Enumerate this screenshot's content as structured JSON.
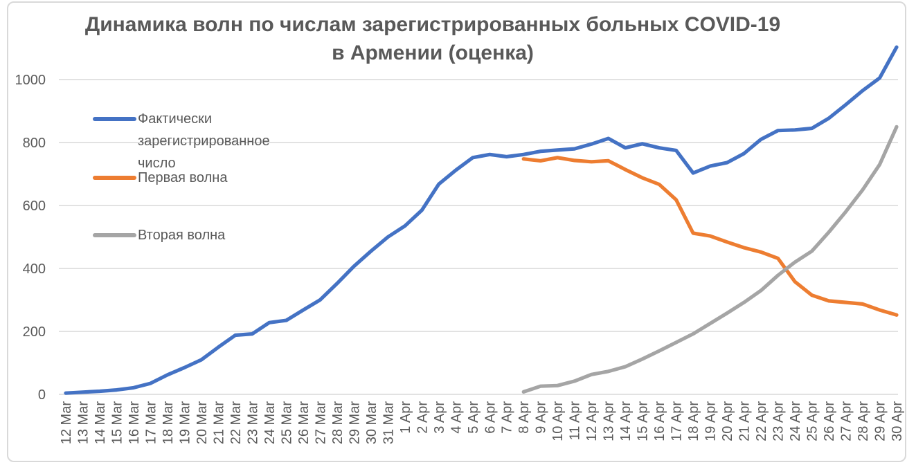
{
  "chart_data": {
    "type": "line",
    "title": "Динамика волн по числам зарегистрированных больных COVID-19 в Армении (оценка)",
    "xlabel": "",
    "ylabel": "",
    "grid": true,
    "legend_position": "left-overlay",
    "y_axis": {
      "ticks": [
        0,
        200,
        400,
        600,
        800,
        1000
      ],
      "min": 0,
      "max": 1100
    },
    "categories": [
      "12 Mar",
      "13 Mar",
      "14 Mar",
      "15 Mar",
      "16 Mar",
      "17 Mar",
      "18 Mar",
      "19 Mar",
      "20 Mar",
      "21 Mar",
      "22 Mar",
      "23 Mar",
      "24 Mar",
      "25 Mar",
      "26 Mar",
      "27 Mar",
      "28 Mar",
      "29 Mar",
      "30 Mar",
      "31 Mar",
      "1 Apr",
      "2 Apr",
      "3 Apr",
      "4 Apr",
      "5 Apr",
      "6 Apr",
      "7 Apr",
      "8 Apr",
      "9 Apr",
      "10 Apr",
      "11 Apr",
      "12 Apr",
      "13 Apr",
      "14 Apr",
      "15 Apr",
      "16 Apr",
      "17 Apr",
      "18 Apr",
      "19 Apr",
      "20 Apr",
      "21 Apr",
      "22 Apr",
      "23 Apr",
      "24 Apr",
      "25 Apr",
      "26 Apr",
      "27 Apr",
      "28 Apr",
      "29 Apr",
      "30 Apr"
    ],
    "series": [
      {
        "name": "Фактически зарегистрированное число",
        "color": "#4472C4",
        "values": [
          4,
          7,
          10,
          14,
          21,
          35,
          62,
          85,
          110,
          150,
          188,
          192,
          228,
          235,
          268,
          300,
          352,
          407,
          455,
          500,
          535,
          585,
          668,
          712,
          752,
          762,
          755,
          762,
          772,
          776,
          780,
          795,
          813,
          783,
          796,
          783,
          775,
          703,
          725,
          736,
          765,
          810,
          838,
          840,
          845,
          877,
          920,
          965,
          1005,
          1103
        ]
      },
      {
        "name": "Первая волна",
        "color": "#ED7D31",
        "values": [
          null,
          null,
          null,
          null,
          null,
          null,
          null,
          null,
          null,
          null,
          null,
          null,
          null,
          null,
          null,
          null,
          null,
          null,
          null,
          null,
          null,
          null,
          null,
          null,
          null,
          null,
          null,
          748,
          742,
          752,
          743,
          739,
          742,
          714,
          688,
          667,
          618,
          512,
          503,
          484,
          466,
          452,
          432,
          358,
          315,
          297,
          292,
          287,
          268,
          252
        ]
      },
      {
        "name": "Вторая волна",
        "color": "#A5A5A5",
        "values": [
          null,
          null,
          null,
          null,
          null,
          null,
          null,
          null,
          null,
          null,
          null,
          null,
          null,
          null,
          null,
          null,
          null,
          null,
          null,
          null,
          null,
          null,
          null,
          null,
          null,
          null,
          null,
          8,
          26,
          28,
          42,
          63,
          73,
          88,
          112,
          138,
          165,
          192,
          225,
          258,
          292,
          330,
          378,
          420,
          455,
          515,
          580,
          650,
          730,
          850
        ]
      }
    ],
    "colors": {
      "text": "#595959",
      "gridline": "#D9D9D9",
      "frame_border": "#D9D9D9",
      "background": "#FFFFFF"
    }
  }
}
